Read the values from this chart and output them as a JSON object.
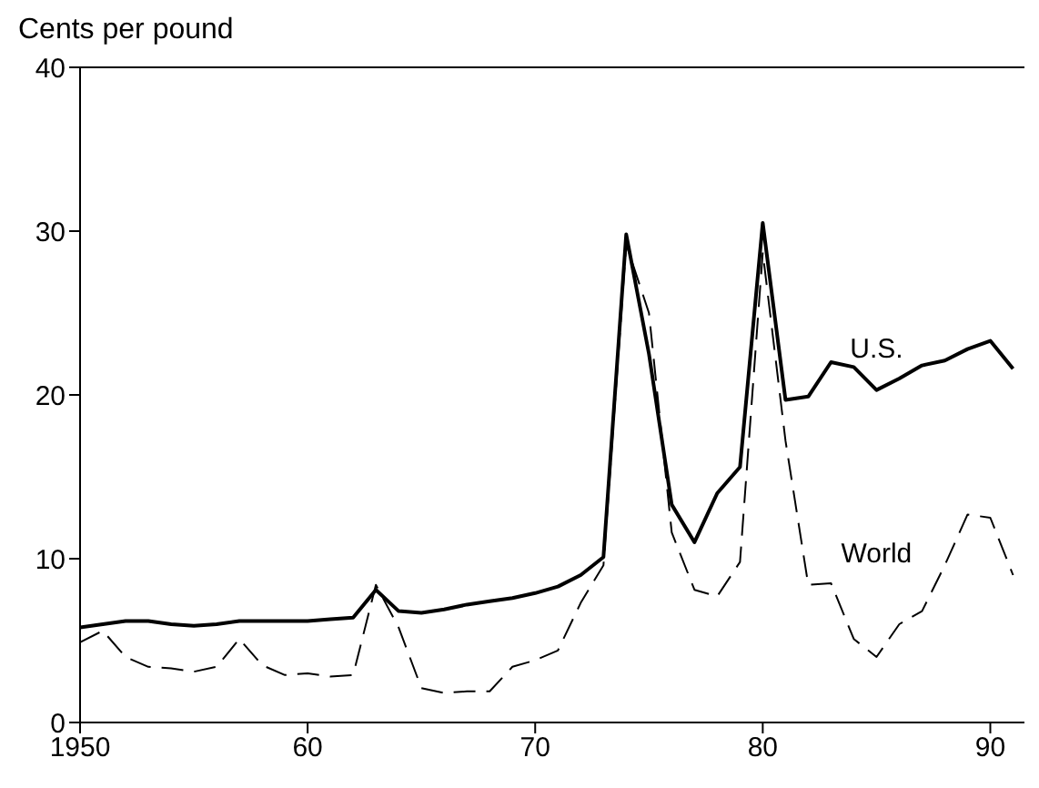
{
  "chart_data": {
    "type": "line",
    "ylabel": "Cents per pound",
    "x": [
      1950,
      1951,
      1952,
      1953,
      1954,
      1955,
      1956,
      1957,
      1958,
      1959,
      1960,
      1961,
      1962,
      1963,
      1964,
      1965,
      1966,
      1967,
      1968,
      1969,
      1970,
      1971,
      1972,
      1973,
      1974,
      1975,
      1976,
      1977,
      1978,
      1979,
      1980,
      1981,
      1982,
      1983,
      1984,
      1985,
      1986,
      1987,
      1988,
      1989,
      1990,
      1991
    ],
    "series": [
      {
        "name": "U.S.",
        "color": "#000000",
        "line_style": "solid",
        "values": [
          5.8,
          6.0,
          6.2,
          6.2,
          6.0,
          5.9,
          6.0,
          6.2,
          6.2,
          6.2,
          6.2,
          6.3,
          6.4,
          8.1,
          6.8,
          6.7,
          6.9,
          7.2,
          7.4,
          7.6,
          7.9,
          8.3,
          9.0,
          10.1,
          29.8,
          22.5,
          13.3,
          11.0,
          14.0,
          15.6,
          30.5,
          19.7,
          19.9,
          22.0,
          21.7,
          20.3,
          21.0,
          21.8,
          22.1,
          22.8,
          23.3,
          21.6
        ]
      },
      {
        "name": "World",
        "color": "#000000",
        "line_style": "dashed",
        "values": [
          4.9,
          5.6,
          4.0,
          3.4,
          3.3,
          3.1,
          3.4,
          5.1,
          3.5,
          2.9,
          3.0,
          2.8,
          2.9,
          8.4,
          5.8,
          2.1,
          1.8,
          1.9,
          1.9,
          3.4,
          3.8,
          4.4,
          7.3,
          9.6,
          29.2,
          25.0,
          11.6,
          8.1,
          7.7,
          9.8,
          28.7,
          17.2,
          8.4,
          8.5,
          5.1,
          4.0,
          6.0,
          6.8,
          9.6,
          12.7,
          12.5,
          9.0
        ]
      }
    ],
    "xlim": [
      1950,
      1991.5
    ],
    "xticks": [
      1950,
      {
        "value": 1960,
        "label": "60"
      },
      {
        "value": 1970,
        "label": "70"
      },
      {
        "value": 1980,
        "label": "80"
      },
      {
        "value": 1990,
        "label": "90"
      }
    ],
    "ylim": [
      0,
      40
    ],
    "yticks": [
      0,
      10,
      20,
      30,
      40
    ],
    "grid": false,
    "legend": false,
    "marker": "none"
  }
}
